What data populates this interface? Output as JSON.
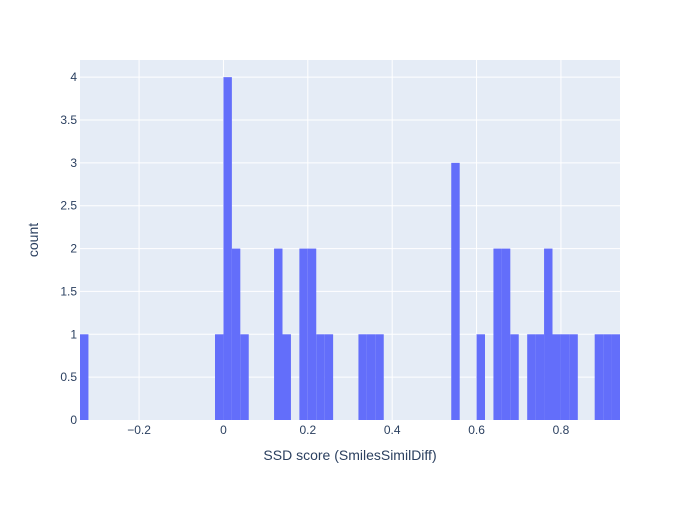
{
  "chart_data": {
    "type": "bar",
    "subtype": "histogram",
    "xlabel": "SSD score (SmilesSimilDiff)",
    "ylabel": "count",
    "xlim": [
      -0.34,
      0.94
    ],
    "ylim": [
      0,
      4.2
    ],
    "bin_width": 0.02,
    "x_ticks": [
      -0.2,
      0,
      0.2,
      0.4,
      0.6,
      0.8
    ],
    "x_tick_labels": [
      "−0.2",
      "0",
      "0.2",
      "0.4",
      "0.6",
      "0.8"
    ],
    "y_ticks": [
      0,
      0.5,
      1,
      1.5,
      2,
      2.5,
      3,
      3.5,
      4
    ],
    "y_tick_labels": [
      "0",
      "0.5",
      "1",
      "1.5",
      "2",
      "2.5",
      "3",
      "3.5",
      "4"
    ],
    "grid": true,
    "colors": {
      "bar": "#636efa",
      "plot_bg": "#e5ecf6",
      "grid": "#ffffff",
      "text": "#2a3f5f"
    },
    "bins": [
      {
        "x0": -0.34,
        "count": 1
      },
      {
        "x0": -0.02,
        "count": 1
      },
      {
        "x0": 0.0,
        "count": 4
      },
      {
        "x0": 0.02,
        "count": 2
      },
      {
        "x0": 0.04,
        "count": 1
      },
      {
        "x0": 0.12,
        "count": 2
      },
      {
        "x0": 0.14,
        "count": 1
      },
      {
        "x0": 0.18,
        "count": 2
      },
      {
        "x0": 0.2,
        "count": 2
      },
      {
        "x0": 0.22,
        "count": 1
      },
      {
        "x0": 0.24,
        "count": 1
      },
      {
        "x0": 0.32,
        "count": 1
      },
      {
        "x0": 0.34,
        "count": 1
      },
      {
        "x0": 0.36,
        "count": 1
      },
      {
        "x0": 0.54,
        "count": 3
      },
      {
        "x0": 0.6,
        "count": 1
      },
      {
        "x0": 0.64,
        "count": 2
      },
      {
        "x0": 0.66,
        "count": 2
      },
      {
        "x0": 0.68,
        "count": 1
      },
      {
        "x0": 0.72,
        "count": 1
      },
      {
        "x0": 0.74,
        "count": 1
      },
      {
        "x0": 0.76,
        "count": 2
      },
      {
        "x0": 0.78,
        "count": 1
      },
      {
        "x0": 0.8,
        "count": 1
      },
      {
        "x0": 0.82,
        "count": 1
      },
      {
        "x0": 0.88,
        "count": 1
      },
      {
        "x0": 0.9,
        "count": 1
      },
      {
        "x0": 0.92,
        "count": 1
      }
    ]
  }
}
